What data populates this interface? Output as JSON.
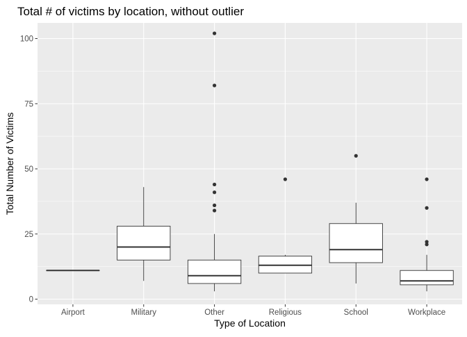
{
  "chart_data": {
    "type": "boxplot",
    "title": "Total # of victims by location, without outlier",
    "xlabel": "Type of Location",
    "ylabel": "Total Number of Victims",
    "ylim": [
      -2,
      106
    ],
    "yticks": [
      0,
      25,
      50,
      75,
      100
    ],
    "grid": true,
    "legend": "none",
    "colors": {
      "panel": "#ebebeb",
      "grid_major": "#ffffff",
      "box_fill": "#ffffff",
      "box_line": "#333333",
      "outlier": "#333333",
      "tick_label": "#4d4d4d"
    },
    "categories": [
      "Airport",
      "Military",
      "Other",
      "Religious",
      "School",
      "Workplace"
    ],
    "boxes": [
      {
        "category": "Airport",
        "min": 11,
        "q1": 11,
        "median": 11,
        "q3": 11,
        "max": 11,
        "outliers": []
      },
      {
        "category": "Military",
        "min": 7,
        "q1": 15,
        "median": 20,
        "q3": 28,
        "max": 43,
        "outliers": []
      },
      {
        "category": "Other",
        "min": 3,
        "q1": 6,
        "median": 9,
        "q3": 15,
        "max": 25,
        "outliers": [
          34,
          36,
          41,
          44,
          82,
          102
        ]
      },
      {
        "category": "Religious",
        "min": 10,
        "q1": 10,
        "median": 13,
        "q3": 16.5,
        "max": 17,
        "outliers": [
          46
        ]
      },
      {
        "category": "School",
        "min": 6,
        "q1": 14,
        "median": 19,
        "q3": 29,
        "max": 37,
        "outliers": [
          55
        ]
      },
      {
        "category": "Workplace",
        "min": 3,
        "q1": 5.5,
        "median": 7,
        "q3": 11,
        "max": 17,
        "outliers": [
          21,
          22,
          35,
          46
        ]
      }
    ]
  }
}
